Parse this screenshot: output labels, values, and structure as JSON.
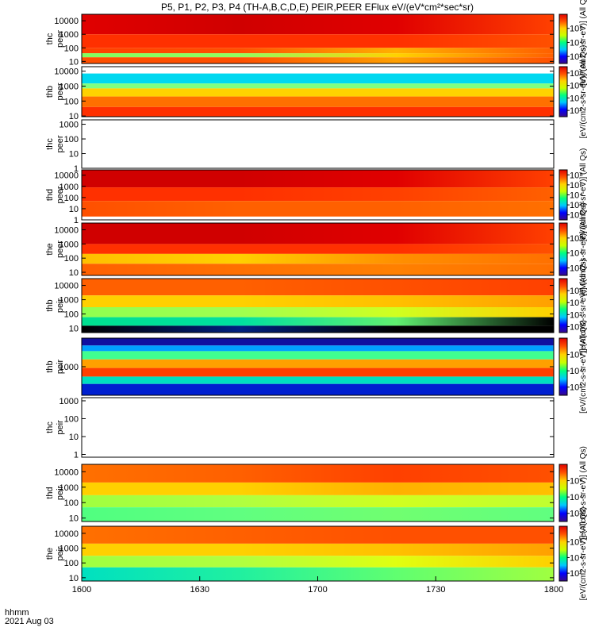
{
  "title": "P5, P1, P2, P3, P4 (TH-A,B,C,D,E) PEIR,PEER EFlux eV/(eV*cm²*sec*sr)",
  "footer": {
    "time_label": "hhmm",
    "date_label": "2021 Aug 03"
  },
  "colorbar_labels": [
    "[eV/(cm2-s-sr-eV)] (All Qs)",
    "[eV/(cm2-s-sr-eV)] (All Qs)",
    "[eV/(cm2-s-sr-eV)] (All Qs)",
    "[eV/(cm2-s-sr-eV)] (All Qs)",
    "[eV/(cm2-s-sr-eV)] (All Qs)",
    "[eV/(cm2-s-sr-eV)] (All Qs)",
    "[eV/(cm2-s-sr-eV)] (All Qs)",
    "[eV/(cm2-s-sr-eV)] (All Qs)",
    "[eV/(cm2-s-sr-eV)] (All Qs)"
  ],
  "chart_data": {
    "type": "heatmap",
    "x_ticks": [
      "1600",
      "1630",
      "1700",
      "1730",
      "1800"
    ],
    "x_values": [
      0,
      30,
      60,
      90,
      120
    ],
    "x_range": [
      0,
      120
    ],
    "colormap": [
      "#3a0a8a",
      "#0000ff",
      "#00c8ff",
      "#00ff80",
      "#c8ff00",
      "#ffd200",
      "#ff5000",
      "#e00000"
    ],
    "panels": [
      {
        "label": [
          "thc",
          "peer"
        ],
        "scale": "log",
        "yticks": [
          "10",
          "100",
          "1000",
          "10000"
        ],
        "ytick_values": [
          10,
          100,
          1000,
          10000
        ],
        "ylim": [
          7,
          30000
        ],
        "colorbar": {
          "ticks": [
            "10⁶",
            "10⁴",
            "10²"
          ],
          "tick_values": [
            6,
            4,
            2
          ],
          "range": [
            1,
            8
          ]
        },
        "rows": [
          {
            "y": [
              1000,
              30000
            ],
            "colors": [
              "#e00000",
              "#d00000",
              "#e00000",
              "#ff4000"
            ]
          },
          {
            "y": [
              100,
              1000
            ],
            "colors": [
              "#ff3000",
              "#ff3000",
              "#ff3000",
              "#ff5000"
            ]
          },
          {
            "y": [
              40,
              100
            ],
            "colors": [
              "#ff4000",
              "#ff5000",
              "#ffb000",
              "#ff6000"
            ]
          },
          {
            "y": [
              20,
              40
            ],
            "colors": [
              "#80ff60",
              "#90ff60",
              "#ffd200",
              "#ff6000"
            ]
          },
          {
            "y": [
              7,
              20
            ],
            "colors": [
              "#ff5000",
              "#ff5000",
              "#ffa000",
              "#ff5000"
            ]
          }
        ]
      },
      {
        "label": [
          "thb",
          "peer"
        ],
        "scale": "log",
        "yticks": [
          "10",
          "100",
          "1000",
          "10000"
        ],
        "ytick_values": [
          10,
          100,
          1000,
          10000
        ],
        "ylim": [
          9,
          20000
        ],
        "colorbar": {
          "ticks": [
            "10⁸",
            "10⁶",
            "10⁴",
            "10²"
          ],
          "tick_values": [
            8,
            6,
            4,
            2
          ],
          "range": [
            1,
            9
          ]
        },
        "rows": [
          {
            "y": [
              1500,
              7000
            ],
            "colors": [
              "#00d8f0",
              "#00d8f0",
              "#00d8f0",
              "#00d8f0"
            ]
          },
          {
            "y": [
              700,
              1500
            ],
            "colors": [
              "#80ff80",
              "#80ff80",
              "#80ff80",
              "#80ff80"
            ]
          },
          {
            "y": [
              200,
              700
            ],
            "colors": [
              "#ffd200",
              "#ffd200",
              "#ffd200",
              "#ffd200"
            ]
          },
          {
            "y": [
              40,
              200
            ],
            "colors": [
              "#ff7000",
              "#ff7000",
              "#ff7000",
              "#ff7000"
            ]
          },
          {
            "y": [
              9,
              40
            ],
            "colors": [
              "#ff3000",
              "#ff3000",
              "#ff3000",
              "#ff3000"
            ]
          }
        ]
      },
      {
        "label": [
          "thc",
          "peer"
        ],
        "scale": "log",
        "yticks": [
          "1",
          "10",
          "100",
          "1000"
        ],
        "ytick_values": [
          1,
          10,
          100,
          1000
        ],
        "ylim": [
          1,
          2000
        ],
        "rows": []
      },
      {
        "label": [
          "thd",
          "peer"
        ],
        "scale": "log",
        "yticks": [
          "1",
          "10",
          "100",
          "1000",
          "10000"
        ],
        "ytick_values": [
          1,
          10,
          100,
          1000,
          10000
        ],
        "ylim": [
          1,
          30000
        ],
        "colorbar": {
          "ticks": [
            "10⁸",
            "10⁶",
            "10⁴",
            "10²",
            "10⁰"
          ],
          "tick_values": [
            8,
            6,
            4,
            2,
            0
          ],
          "range": [
            -1,
            9
          ]
        },
        "rows": [
          {
            "y": [
              800,
              30000
            ],
            "colors": [
              "#d00000",
              "#d00000",
              "#e00000",
              "#ff4000"
            ]
          },
          {
            "y": [
              50,
              800
            ],
            "colors": [
              "#ff3000",
              "#ff3000",
              "#ff4000",
              "#ff6000"
            ]
          },
          {
            "y": [
              2,
              50
            ],
            "colors": [
              "#ff5000",
              "#ff6000",
              "#ff6000",
              "#ff7000"
            ]
          }
        ]
      },
      {
        "label": [
          "the",
          "peer"
        ],
        "scale": "log",
        "yticks": [
          "10",
          "100",
          "1000",
          "10000"
        ],
        "ytick_values": [
          10,
          100,
          1000,
          10000
        ],
        "ylim": [
          6,
          30000
        ],
        "colorbar": {
          "ticks": [
            "10⁶",
            "10⁴",
            "10²"
          ],
          "tick_values": [
            6,
            4,
            2
          ],
          "range": [
            1,
            8
          ]
        },
        "rows": [
          {
            "y": [
              1000,
              30000
            ],
            "colors": [
              "#d00000",
              "#d00000",
              "#e00000",
              "#ff4000"
            ]
          },
          {
            "y": [
              200,
              1000
            ],
            "colors": [
              "#ff3000",
              "#ff3000",
              "#ff3000",
              "#ff5000"
            ]
          },
          {
            "y": [
              40,
              200
            ],
            "colors": [
              "#ffc000",
              "#ffd000",
              "#ff9000",
              "#ff7000"
            ]
          },
          {
            "y": [
              6,
              40
            ],
            "colors": [
              "#ff6000",
              "#ff7000",
              "#ff8000",
              "#ff7000"
            ]
          }
        ]
      },
      {
        "label": [
          "thb",
          "peir"
        ],
        "scale": "log",
        "yticks": [
          "10",
          "100",
          "1000",
          "10000"
        ],
        "ytick_values": [
          10,
          100,
          1000,
          10000
        ],
        "ylim": [
          5,
          30000
        ],
        "colorbar": {
          "ticks": [
            "10⁶",
            "10⁴",
            "10²",
            "10⁰"
          ],
          "tick_values": [
            6,
            4,
            2,
            0
          ],
          "range": [
            -1,
            8
          ]
        },
        "rows": [
          {
            "y": [
              2000,
              30000
            ],
            "colors": [
              "#ff6000",
              "#ff6000",
              "#ff5000",
              "#ff4000"
            ]
          },
          {
            "y": [
              300,
              2000
            ],
            "colors": [
              "#ffd000",
              "#ffd000",
              "#ffc000",
              "#ffa000"
            ]
          },
          {
            "y": [
              60,
              300
            ],
            "colors": [
              "#90ff50",
              "#a0ff50",
              "#d0ff20",
              "#ffd000"
            ]
          },
          {
            "y": [
              15,
              60
            ],
            "colors": [
              "#00e090",
              "#00e0a0",
              "#60f070",
              "#000000"
            ]
          },
          {
            "y": [
              5,
              15
            ],
            "colors": [
              "#000000",
              "#002080",
              "#000000",
              "#000000"
            ]
          }
        ]
      },
      {
        "label": [
          "thb",
          "peir"
        ],
        "scale": "log",
        "yticks": [
          "1000"
        ],
        "ytick_values": [
          1000
        ],
        "ylim": [
          100,
          10000
        ],
        "colorbar": {
          "ticks": [
            "10⁶",
            "10⁴",
            "10²"
          ],
          "tick_values": [
            6,
            4,
            2
          ],
          "range": [
            1,
            8
          ]
        },
        "rows": [
          {
            "y": [
              5500,
              10000
            ],
            "colors": [
              "#1010a0",
              "#1010a0",
              "#1010a0",
              "#1010a0"
            ]
          },
          {
            "y": [
              3500,
              5500
            ],
            "colors": [
              "#00a0ff",
              "#00a0ff",
              "#00a0ff",
              "#00a0ff"
            ]
          },
          {
            "y": [
              1800,
              3500
            ],
            "colors": [
              "#40ff90",
              "#40ff90",
              "#40ff90",
              "#40ff90"
            ]
          },
          {
            "y": [
              900,
              1800
            ],
            "colors": [
              "#ffa000",
              "#ffa000",
              "#ffa000",
              "#ffa000"
            ]
          },
          {
            "y": [
              450,
              900
            ],
            "colors": [
              "#ff4000",
              "#ff4000",
              "#ff4000",
              "#ff4000"
            ]
          },
          {
            "y": [
              250,
              450
            ],
            "colors": [
              "#00e0c0",
              "#00e0c0",
              "#00e0c0",
              "#00e0c0"
            ]
          },
          {
            "y": [
              100,
              250
            ],
            "colors": [
              "#0020d0",
              "#0020d0",
              "#0020d0",
              "#0020d0"
            ]
          }
        ]
      },
      {
        "label": [
          "thc",
          "peir"
        ],
        "scale": "log",
        "yticks": [
          "1",
          "10",
          "100",
          "1000"
        ],
        "ytick_values": [
          1,
          10,
          100,
          1000
        ],
        "ylim": [
          0.7,
          1500
        ],
        "rows": []
      },
      {
        "label": [
          "thd",
          "peir"
        ],
        "scale": "log",
        "yticks": [
          "10",
          "100",
          "1000",
          "10000"
        ],
        "ytick_values": [
          10,
          100,
          1000,
          10000
        ],
        "ylim": [
          6,
          30000
        ],
        "colorbar": {
          "ticks": [
            "10⁶",
            "10⁴",
            "10²"
          ],
          "tick_values": [
            6,
            4,
            2
          ],
          "range": [
            1,
            8
          ]
        },
        "rows": [
          {
            "y": [
              2000,
              30000
            ],
            "colors": [
              "#ff7000",
              "#ff6000",
              "#ff4000",
              "#ff5000"
            ]
          },
          {
            "y": [
              300,
              2000
            ],
            "colors": [
              "#ffd000",
              "#ffd000",
              "#ffb000",
              "#ffc000"
            ]
          },
          {
            "y": [
              50,
              300
            ],
            "colors": [
              "#a0ff40",
              "#b0ff40",
              "#d0ff20",
              "#c0ff30"
            ]
          },
          {
            "y": [
              6,
              50
            ],
            "colors": [
              "#50ff80",
              "#60ff80",
              "#70ff70",
              "#60ff80"
            ]
          }
        ]
      },
      {
        "label": [
          "the",
          "peir"
        ],
        "scale": "log",
        "yticks": [
          "10",
          "100",
          "1000",
          "10000"
        ],
        "ytick_values": [
          10,
          100,
          1000,
          10000
        ],
        "ylim": [
          6,
          30000
        ],
        "colorbar": {
          "ticks": [
            "10⁶",
            "10⁴",
            "10²"
          ],
          "tick_values": [
            6,
            4,
            2
          ],
          "range": [
            1,
            8
          ]
        },
        "rows": [
          {
            "y": [
              2000,
              30000
            ],
            "colors": [
              "#ff7000",
              "#ff6000",
              "#ff5000",
              "#ff5000"
            ]
          },
          {
            "y": [
              300,
              2000
            ],
            "colors": [
              "#ffd000",
              "#ffd000",
              "#ffc000",
              "#ffa000"
            ]
          },
          {
            "y": [
              50,
              300
            ],
            "colors": [
              "#a0ff40",
              "#b0ff40",
              "#e0ff10",
              "#ffd000"
            ]
          },
          {
            "y": [
              6,
              50
            ],
            "colors": [
              "#00e0c0",
              "#20f0a0",
              "#60ff70",
              "#a0ff40"
            ]
          }
        ]
      }
    ]
  }
}
